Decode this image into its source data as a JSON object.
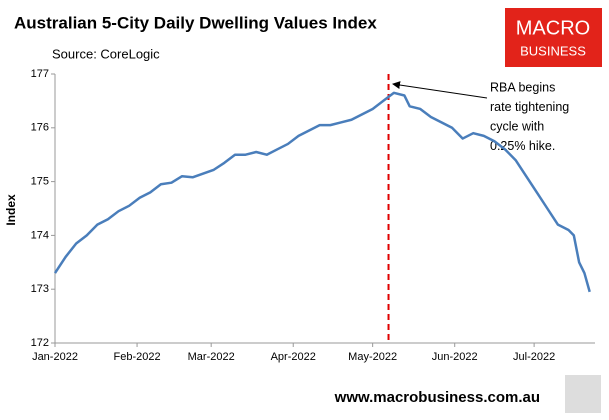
{
  "chart_data": {
    "type": "line",
    "title": "Australian 5-City Daily Dwelling Values Index",
    "subtitle": "Source: CoreLogic",
    "y_label": "Index",
    "logo": [
      "MACRO",
      "BUSINESS"
    ],
    "footer": "www.macrobusiness.com.au",
    "annotation": {
      "text": [
        "RBA begins",
        "rate tightening",
        "cycle with",
        "0.25% hike."
      ],
      "x": 126,
      "color": "#e00000"
    },
    "x": [
      0,
      4,
      8,
      12,
      16,
      20,
      24,
      28,
      32,
      36,
      40,
      44,
      48,
      52,
      56,
      60,
      64,
      68,
      72,
      76,
      80,
      84,
      88,
      92,
      96,
      100,
      104,
      108,
      112,
      116,
      120,
      124,
      128,
      132,
      134,
      138,
      142,
      146,
      150,
      154,
      158,
      162,
      166,
      170,
      174,
      178,
      182,
      186,
      190,
      194,
      196,
      198,
      200,
      202
    ],
    "series": [
      {
        "name": "Index",
        "color": "#4a7ebb",
        "values": [
          173.3,
          173.6,
          173.85,
          174.0,
          174.2,
          174.3,
          174.45,
          174.55,
          174.7,
          174.8,
          174.95,
          174.98,
          175.1,
          175.08,
          175.15,
          175.22,
          175.35,
          175.5,
          175.5,
          175.55,
          175.5,
          175.6,
          175.7,
          175.85,
          175.95,
          176.05,
          176.05,
          176.1,
          176.15,
          176.25,
          176.35,
          176.5,
          176.65,
          176.6,
          176.4,
          176.35,
          176.2,
          176.1,
          176.0,
          175.8,
          175.9,
          175.85,
          175.75,
          175.6,
          175.4,
          175.1,
          174.8,
          174.5,
          174.2,
          174.1,
          174.0,
          173.5,
          173.3,
          172.95
        ]
      }
    ],
    "xlim": [
      0,
      204
    ],
    "xticks": [
      {
        "value": 0,
        "label": "Jan-2022"
      },
      {
        "value": 31,
        "label": "Feb-2022"
      },
      {
        "value": 59,
        "label": "Mar-2022"
      },
      {
        "value": 90,
        "label": "Apr-2022"
      },
      {
        "value": 120,
        "label": "May-2022"
      },
      {
        "value": 151,
        "label": "Jun-2022"
      },
      {
        "value": 181,
        "label": "Jul-2022"
      }
    ],
    "ylim": [
      172,
      177
    ],
    "yticks": [
      172,
      173,
      174,
      175,
      176,
      177
    ],
    "grid": false
  }
}
